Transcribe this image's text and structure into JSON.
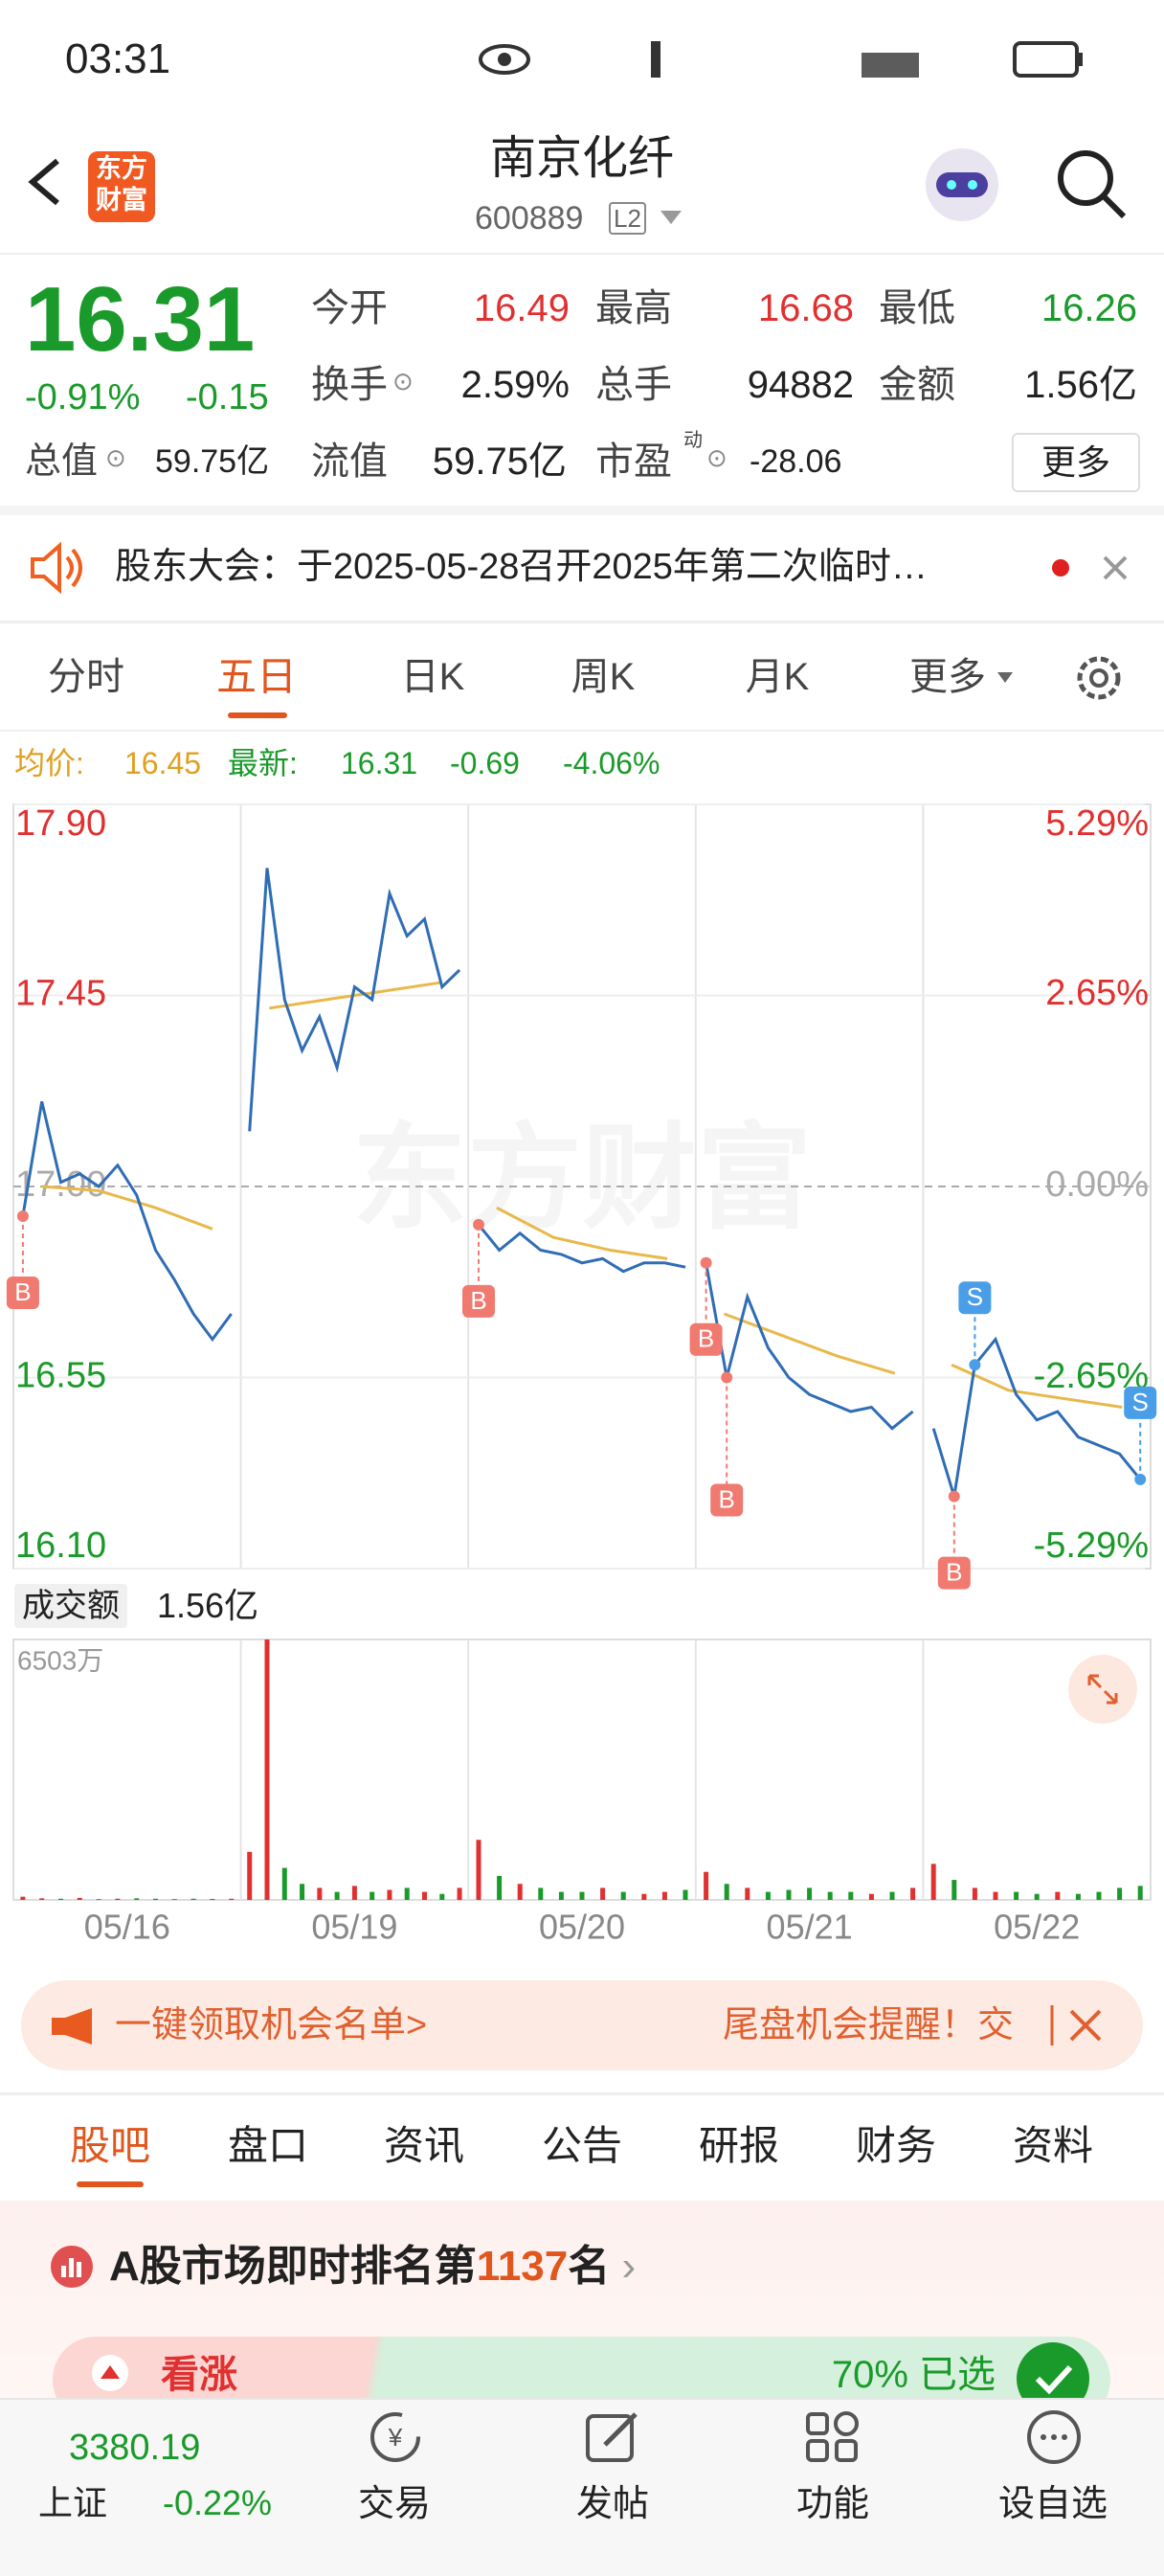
{
  "status_bar": {
    "time": "03:31"
  },
  "header": {
    "logo": "东方财富",
    "title": "南京化纤",
    "code": "600889",
    "badge": "L2"
  },
  "quote": {
    "price": "16.31",
    "change_pct": "-0.91%",
    "change": "-0.15",
    "fields": [
      {
        "label": "今开",
        "value": "16.49"
      },
      {
        "label": "最高",
        "value": "16.68"
      },
      {
        "label": "最低",
        "value": "16.26"
      },
      {
        "label": "换手",
        "value": "2.59%"
      },
      {
        "label": "总手",
        "value": "94882"
      },
      {
        "label": "金额",
        "value": "1.56亿"
      },
      {
        "label": "总值",
        "value": "59.75亿"
      },
      {
        "label": "流值",
        "value": "59.75亿"
      },
      {
        "label": "市盈",
        "sup": "动",
        "value": "-28.06"
      }
    ],
    "more": "更多"
  },
  "notice": {
    "text": "股东大会：于2025-05-28召开2025年第二次临时…"
  },
  "chart_tabs": [
    "分时",
    "五日",
    "日K",
    "周K",
    "月K",
    "更多"
  ],
  "info_line": {
    "avg_label": "均价:",
    "avg": "16.45",
    "latest_label": "最新:",
    "latest": "16.31",
    "change": "-0.69",
    "change_pct": "-4.06%"
  },
  "chart": {
    "ylim": [
      16.1,
      17.9
    ],
    "yticks": [
      {
        "value": 17.9,
        "label": "17.90"
      },
      17.45,
      {
        "value": 17.0,
        "label": "17.00"
      },
      16.55,
      {
        "value": 16.1,
        "label": "16.10"
      }
    ],
    "y2lim": [
      -5.29,
      5.29
    ],
    "y2ticks": [
      {
        "value": 5.29,
        "label": "5.29%"
      },
      {
        "value": 2.65,
        "label": "2.65%"
      },
      {
        "value": 0,
        "label": "0.00%"
      },
      {
        "value": -2.65,
        "label": "-2.65%"
      },
      {
        "value": -5.29,
        "label": "-5.29%"
      }
    ],
    "price_color": "#2f6db5",
    "avg_color": "#e8b84a",
    "up_color": "#e03030",
    "down_color": "#1a9a2a",
    "watermark": "东方财富",
    "categories": [
      "05/16",
      "05/19",
      "05/20",
      "05/21",
      "05/22"
    ],
    "days": [
      {
        "prices": [
          16.93,
          17.2,
          17.01,
          17.03,
          17.0,
          17.05,
          16.98,
          16.85,
          16.78,
          16.7,
          16.64,
          16.7
        ],
        "avg": [
          17.0,
          16.99,
          16.95,
          16.9
        ],
        "trades": [
          "B",
          null,
          null,
          null,
          null,
          null,
          null,
          null,
          null,
          null,
          null,
          null
        ],
        "volume": [
          80,
          40,
          30,
          50,
          20,
          30,
          40,
          30,
          20,
          30,
          25,
          30
        ]
      },
      {
        "prices": [
          17.13,
          17.75,
          17.44,
          17.32,
          17.4,
          17.28,
          17.47,
          17.44,
          17.69,
          17.59,
          17.63,
          17.47,
          17.51
        ],
        "avg": [
          17.42,
          17.44,
          17.46,
          17.48
        ],
        "trades": [
          null,
          null,
          null,
          null,
          null,
          null,
          null,
          null,
          null,
          null,
          null,
          null,
          null
        ],
        "volume": [
          1200,
          6503,
          800,
          400,
          300,
          200,
          350,
          200,
          250,
          300,
          200,
          150,
          300
        ]
      },
      {
        "prices": [
          16.91,
          16.85,
          16.89,
          16.85,
          16.84,
          16.82,
          16.83,
          16.8,
          16.82,
          16.82,
          16.81
        ],
        "avg": [
          16.95,
          16.88,
          16.85,
          16.83
        ],
        "trades": [
          "B",
          null,
          null,
          null,
          null,
          null,
          null,
          null,
          null,
          null,
          null
        ],
        "volume": [
          1500,
          600,
          400,
          300,
          200,
          200,
          300,
          200,
          150,
          200,
          250
        ]
      },
      {
        "prices": [
          16.82,
          16.55,
          16.74,
          16.62,
          16.55,
          16.51,
          16.49,
          16.47,
          16.48,
          16.43,
          16.47
        ],
        "avg": [
          16.7,
          16.65,
          16.6,
          16.56
        ],
        "trades": [
          "B",
          "B",
          null,
          null,
          null,
          null,
          null,
          null,
          null,
          null,
          null
        ],
        "volume": [
          700,
          400,
          300,
          200,
          250,
          300,
          200,
          200,
          150,
          200,
          300
        ]
      },
      {
        "prices": [
          16.43,
          16.27,
          16.58,
          16.64,
          16.51,
          16.45,
          16.47,
          16.41,
          16.39,
          16.37,
          16.31
        ],
        "avg": [
          16.58,
          16.52,
          16.5,
          16.48
        ],
        "trades": [
          null,
          "B",
          "S",
          null,
          null,
          null,
          null,
          null,
          null,
          null,
          "S"
        ],
        "volume": [
          900,
          500,
          300,
          200,
          200,
          150,
          200,
          150,
          200,
          300,
          350
        ]
      }
    ],
    "volume_label": "成交额",
    "volume_total": "1.56亿",
    "volume_ylim": [
      0,
      6503
    ],
    "volume_ticks": [
      {
        "value": 6503,
        "label": "6503万"
      }
    ]
  },
  "banner": {
    "left": "一键领取机会名单>",
    "right": "尾盘机会提醒！交"
  },
  "section_tabs": [
    "股吧",
    "盘口",
    "资讯",
    "公告",
    "研报",
    "财务",
    "资料"
  ],
  "rank": {
    "prefix": "A股市场即时排名第",
    "number": "1137",
    "suffix": "名"
  },
  "vote": {
    "up": "看涨",
    "chosen": "70% 已选"
  },
  "bottom_nav": {
    "index_value": "3380.19",
    "index_name": "上证",
    "index_change": "-0.22%",
    "items": [
      "交易",
      "发帖",
      "功能",
      "设自选"
    ]
  }
}
